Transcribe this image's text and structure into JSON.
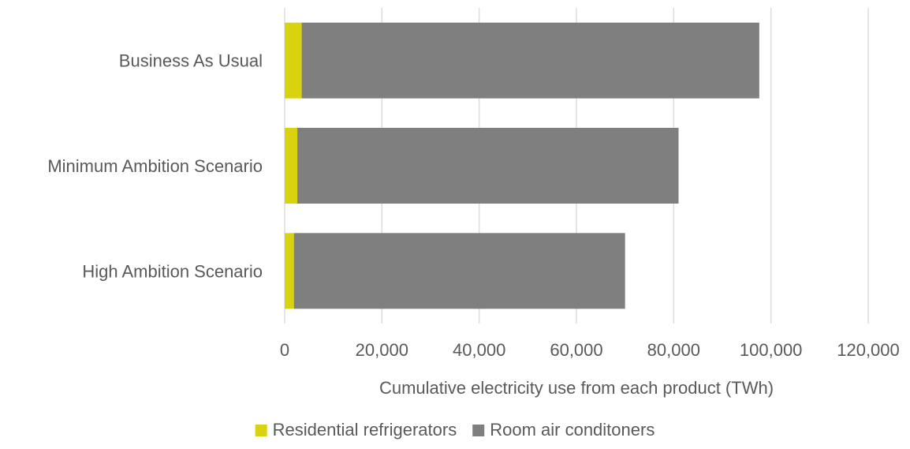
{
  "chart_data": {
    "type": "bar",
    "orientation": "horizontal",
    "stacked": true,
    "categories": [
      "Business As Usual",
      "Minimum Ambition Scenario",
      "High Ambition Scenario"
    ],
    "series": [
      {
        "name": "Residential refrigerators",
        "color": "#d9d20f",
        "values": [
          3500,
          2600,
          1900
        ]
      },
      {
        "name": "Room air conditoners",
        "color": "#7f7f7f",
        "values": [
          94100,
          78400,
          68100
        ]
      }
    ],
    "xlim": [
      0,
      120000
    ],
    "xticks": [
      0,
      20000,
      40000,
      60000,
      80000,
      100000,
      120000
    ],
    "xtick_labels": [
      "0",
      "20,000",
      "40,000",
      "60,000",
      "80,000",
      "100,000",
      "120,000"
    ],
    "xlabel": "Cumulative electricity use from each product (TWh)",
    "grid": "vertical",
    "legend": "bottom"
  }
}
